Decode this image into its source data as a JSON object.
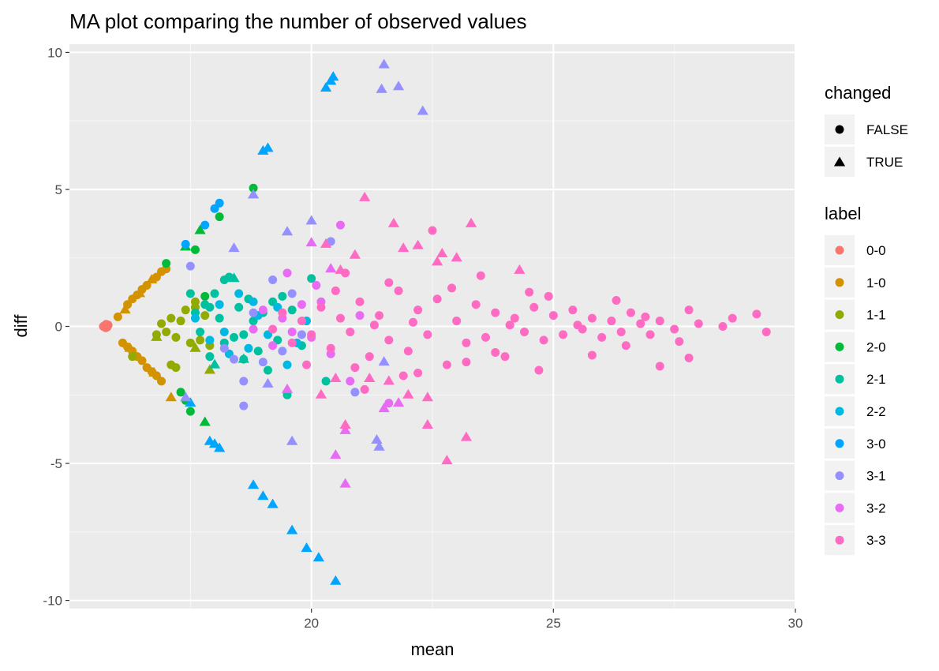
{
  "chart_data": {
    "type": "scatter",
    "title": "MA plot comparing the number of observed values",
    "xlabel": "mean",
    "ylabel": "diff",
    "xlim": [
      15.0,
      30.0
    ],
    "ylim": [
      -10.3,
      10.3
    ],
    "x_ticks": [
      20,
      25,
      30
    ],
    "x_tick_labels": [
      "20",
      "25",
      "30"
    ],
    "y_ticks": [
      -10,
      -5,
      0,
      5,
      10
    ],
    "y_tick_labels": [
      "-10",
      "-5",
      "0",
      "5",
      "10"
    ],
    "grid": true,
    "background": "#ebebeb",
    "legend_position": "right",
    "shape_legend": {
      "title": "changed",
      "entries": [
        {
          "label": "FALSE",
          "shape": "circle"
        },
        {
          "label": "TRUE",
          "shape": "triangle"
        }
      ]
    },
    "color_legend": {
      "title": "label",
      "entries": [
        {
          "label": "0-0",
          "color": "#F8766D"
        },
        {
          "label": "1-0",
          "color": "#D39200"
        },
        {
          "label": "1-1",
          "color": "#93AA00"
        },
        {
          "label": "2-0",
          "color": "#00BA38"
        },
        {
          "label": "2-1",
          "color": "#00C19F"
        },
        {
          "label": "2-2",
          "color": "#00B9E3"
        },
        {
          "label": "3-0",
          "color": "#00A5FF"
        },
        {
          "label": "3-1",
          "color": "#9590FF"
        },
        {
          "label": "3-2",
          "color": "#E76BF3"
        },
        {
          "label": "3-3",
          "color": "#FF6AC2"
        }
      ]
    },
    "series": [
      {
        "label": "0-0",
        "changed": false,
        "points": [
          [
            15.7,
            0.0
          ],
          [
            15.75,
            -0.05
          ],
          [
            15.8,
            0.05
          ],
          [
            15.72,
            0.02
          ],
          [
            15.78,
            -0.02
          ],
          [
            15.76,
            0.08
          ]
        ]
      },
      {
        "label": "1-0",
        "changed": false,
        "points": [
          [
            16.0,
            0.35
          ],
          [
            16.2,
            0.8
          ],
          [
            16.3,
            1.0
          ],
          [
            16.4,
            1.15
          ],
          [
            16.5,
            1.35
          ],
          [
            16.6,
            1.5
          ],
          [
            16.8,
            1.8
          ],
          [
            16.9,
            2.0
          ],
          [
            17.0,
            2.1
          ],
          [
            16.1,
            -0.6
          ],
          [
            16.2,
            -0.75
          ],
          [
            16.3,
            -0.9
          ],
          [
            16.4,
            -1.1
          ],
          [
            16.5,
            -1.25
          ],
          [
            16.6,
            -1.5
          ],
          [
            16.7,
            -1.65
          ],
          [
            16.8,
            -1.8
          ],
          [
            16.9,
            -2.0
          ]
        ]
      },
      {
        "label": "1-0",
        "changed": true,
        "points": [
          [
            16.15,
            0.6
          ],
          [
            16.45,
            1.2
          ],
          [
            16.7,
            1.7
          ],
          [
            16.25,
            -0.8
          ],
          [
            16.75,
            -1.7
          ],
          [
            17.1,
            -2.6
          ]
        ]
      },
      {
        "label": "1-1",
        "changed": false,
        "points": [
          [
            16.3,
            -1.1
          ],
          [
            16.8,
            -0.3
          ],
          [
            16.9,
            0.1
          ],
          [
            17.0,
            -0.2
          ],
          [
            17.1,
            0.3
          ],
          [
            17.2,
            -0.4
          ],
          [
            17.3,
            0.2
          ],
          [
            17.4,
            0.6
          ],
          [
            17.5,
            -0.6
          ],
          [
            17.6,
            0.9
          ],
          [
            17.7,
            -0.5
          ],
          [
            17.8,
            0.4
          ],
          [
            17.1,
            -1.4
          ],
          [
            17.2,
            -1.5
          ],
          [
            17.6,
            0.7
          ],
          [
            17.9,
            -0.7
          ]
        ]
      },
      {
        "label": "1-1",
        "changed": true,
        "points": [
          [
            16.8,
            -0.4
          ],
          [
            17.6,
            -0.8
          ],
          [
            17.9,
            -1.6
          ]
        ]
      },
      {
        "label": "2-0",
        "changed": false,
        "points": [
          [
            17.0,
            2.3
          ],
          [
            17.3,
            -2.4
          ],
          [
            17.5,
            -3.1
          ],
          [
            17.8,
            1.1
          ],
          [
            18.1,
            4.0
          ],
          [
            18.8,
            5.05
          ],
          [
            17.6,
            2.8
          ],
          [
            17.4,
            -2.7
          ]
        ]
      },
      {
        "label": "2-0",
        "changed": true,
        "points": [
          [
            17.7,
            3.5
          ],
          [
            17.8,
            -3.5
          ],
          [
            17.4,
            2.9
          ]
        ]
      },
      {
        "label": "2-1",
        "changed": false,
        "points": [
          [
            17.5,
            1.2
          ],
          [
            17.6,
            0.5
          ],
          [
            17.7,
            -0.2
          ],
          [
            17.8,
            0.8
          ],
          [
            17.9,
            -1.1
          ],
          [
            18.0,
            1.2
          ],
          [
            18.1,
            0.3
          ],
          [
            18.2,
            -0.6
          ],
          [
            18.3,
            1.8
          ],
          [
            18.4,
            -0.4
          ],
          [
            18.5,
            0.7
          ],
          [
            18.6,
            -1.2
          ],
          [
            18.7,
            1.0
          ],
          [
            18.8,
            0.2
          ],
          [
            18.9,
            -0.9
          ],
          [
            19.0,
            0.5
          ],
          [
            19.1,
            -1.6
          ],
          [
            19.2,
            0.9
          ],
          [
            19.3,
            -0.5
          ],
          [
            19.4,
            1.1
          ],
          [
            19.5,
            -2.5
          ],
          [
            19.6,
            0.6
          ],
          [
            19.8,
            -0.7
          ],
          [
            20.0,
            1.75
          ],
          [
            20.3,
            -2.0
          ],
          [
            18.2,
            1.7
          ],
          [
            17.9,
            0.7
          ],
          [
            18.6,
            -0.3
          ]
        ]
      },
      {
        "label": "2-1",
        "changed": true,
        "points": [
          [
            18.0,
            -1.4
          ],
          [
            18.6,
            -1.2
          ],
          [
            18.4,
            1.75
          ]
        ]
      },
      {
        "label": "2-2",
        "changed": false,
        "points": [
          [
            17.6,
            0.3
          ],
          [
            17.9,
            -0.5
          ],
          [
            18.1,
            0.8
          ],
          [
            18.3,
            -1.0
          ],
          [
            18.5,
            1.2
          ],
          [
            18.7,
            -0.8
          ],
          [
            18.9,
            0.4
          ],
          [
            19.1,
            -0.3
          ],
          [
            19.3,
            0.7
          ],
          [
            19.5,
            -1.4
          ],
          [
            19.7,
            -0.6
          ],
          [
            19.9,
            0.2
          ],
          [
            18.2,
            -0.2
          ],
          [
            18.8,
            0.9
          ]
        ]
      },
      {
        "label": "3-0",
        "changed": false,
        "points": [
          [
            17.4,
            3.0
          ],
          [
            17.8,
            3.7
          ],
          [
            18.0,
            4.3
          ],
          [
            18.1,
            4.5
          ]
        ]
      },
      {
        "label": "3-0",
        "changed": true,
        "points": [
          [
            17.5,
            -2.8
          ],
          [
            18.0,
            -4.3
          ],
          [
            18.1,
            -4.45
          ],
          [
            18.8,
            -5.8
          ],
          [
            19.0,
            6.4
          ],
          [
            19.1,
            6.5
          ],
          [
            19.0,
            -6.2
          ],
          [
            19.2,
            -6.5
          ],
          [
            19.6,
            -7.45
          ],
          [
            19.9,
            -8.1
          ],
          [
            20.15,
            -8.45
          ],
          [
            20.3,
            8.7
          ],
          [
            20.4,
            8.95
          ],
          [
            20.45,
            9.1
          ],
          [
            20.5,
            -9.3
          ],
          [
            17.9,
            -4.2
          ]
        ]
      },
      {
        "label": "3-1",
        "changed": false,
        "points": [
          [
            17.5,
            2.2
          ],
          [
            18.2,
            -0.8
          ],
          [
            18.4,
            -1.2
          ],
          [
            18.6,
            -2.0
          ],
          [
            18.8,
            0.5
          ],
          [
            19.0,
            -1.3
          ],
          [
            19.2,
            1.7
          ],
          [
            19.4,
            -0.9
          ],
          [
            19.6,
            1.2
          ],
          [
            19.8,
            -0.3
          ],
          [
            18.6,
            -2.9
          ],
          [
            20.4,
            3.1
          ],
          [
            20.9,
            -2.4
          ]
        ]
      },
      {
        "label": "3-1",
        "changed": true,
        "points": [
          [
            17.4,
            -2.6
          ],
          [
            18.4,
            2.85
          ],
          [
            18.8,
            4.8
          ],
          [
            19.1,
            -2.1
          ],
          [
            19.5,
            3.45
          ],
          [
            19.6,
            -4.2
          ],
          [
            20.0,
            3.85
          ],
          [
            21.35,
            -4.15
          ],
          [
            21.4,
            -4.4
          ],
          [
            21.45,
            8.65
          ],
          [
            21.5,
            9.55
          ],
          [
            21.8,
            8.75
          ],
          [
            22.3,
            7.85
          ],
          [
            21.5,
            -1.3
          ]
        ]
      },
      {
        "label": "3-2",
        "changed": false,
        "points": [
          [
            18.8,
            -0.1
          ],
          [
            19.0,
            0.6
          ],
          [
            19.2,
            -0.7
          ],
          [
            19.4,
            0.3
          ],
          [
            19.6,
            -0.2
          ],
          [
            19.8,
            0.8
          ],
          [
            20.0,
            -0.4
          ],
          [
            20.2,
            0.9
          ],
          [
            20.4,
            -1.0
          ],
          [
            20.6,
            3.7
          ],
          [
            20.8,
            -2.0
          ],
          [
            21.0,
            0.4
          ],
          [
            21.6,
            -2.8
          ],
          [
            19.5,
            1.95
          ],
          [
            20.1,
            1.5
          ]
        ]
      },
      {
        "label": "3-2",
        "changed": true,
        "points": [
          [
            19.5,
            -2.3
          ],
          [
            20.0,
            3.05
          ],
          [
            20.4,
            2.1
          ],
          [
            20.5,
            -4.7
          ],
          [
            20.7,
            -3.8
          ],
          [
            20.7,
            -5.75
          ],
          [
            21.5,
            -3.0
          ],
          [
            21.8,
            -2.8
          ]
        ]
      },
      {
        "label": "3-3",
        "changed": false,
        "points": [
          [
            19.2,
            -0.1
          ],
          [
            19.4,
            0.5
          ],
          [
            19.6,
            -0.6
          ],
          [
            19.8,
            0.2
          ],
          [
            20.0,
            -0.3
          ],
          [
            20.2,
            0.7
          ],
          [
            20.4,
            -0.8
          ],
          [
            20.6,
            0.3
          ],
          [
            20.8,
            -0.2
          ],
          [
            21.0,
            0.9
          ],
          [
            21.2,
            -1.1
          ],
          [
            21.4,
            0.4
          ],
          [
            21.6,
            -0.5
          ],
          [
            21.8,
            1.3
          ],
          [
            22.0,
            -0.9
          ],
          [
            22.2,
            0.6
          ],
          [
            22.4,
            -0.3
          ],
          [
            22.6,
            1.0
          ],
          [
            22.8,
            -1.4
          ],
          [
            23.0,
            0.2
          ],
          [
            23.2,
            -0.6
          ],
          [
            23.4,
            0.8
          ],
          [
            23.6,
            -0.4
          ],
          [
            23.8,
            0.5
          ],
          [
            24.0,
            -1.1
          ],
          [
            24.2,
            0.3
          ],
          [
            24.4,
            -0.2
          ],
          [
            24.6,
            0.7
          ],
          [
            24.8,
            -0.5
          ],
          [
            25.0,
            0.4
          ],
          [
            25.2,
            -0.3
          ],
          [
            25.4,
            0.6
          ],
          [
            25.6,
            -0.1
          ],
          [
            25.8,
            0.3
          ],
          [
            26.0,
            -0.4
          ],
          [
            26.2,
            0.2
          ],
          [
            26.4,
            -0.2
          ],
          [
            26.6,
            0.5
          ],
          [
            26.8,
            0.1
          ],
          [
            27.0,
            -0.3
          ],
          [
            27.2,
            0.2
          ],
          [
            27.5,
            -0.1
          ],
          [
            27.8,
            0.6
          ],
          [
            28.0,
            0.1
          ],
          [
            28.5,
            0.0
          ],
          [
            28.7,
            0.3
          ],
          [
            29.2,
            0.45
          ],
          [
            29.4,
            -0.2
          ],
          [
            27.2,
            -1.45
          ],
          [
            27.8,
            -1.15
          ],
          [
            26.5,
            -0.7
          ],
          [
            24.7,
            -1.6
          ],
          [
            23.2,
            -1.3
          ],
          [
            22.5,
            3.5
          ],
          [
            21.6,
            1.6
          ],
          [
            21.1,
            -2.3
          ],
          [
            22.2,
            -1.7
          ],
          [
            23.5,
            1.85
          ],
          [
            24.9,
            1.1
          ],
          [
            26.3,
            0.95
          ],
          [
            20.5,
            1.3
          ],
          [
            20.9,
            -1.5
          ],
          [
            22.9,
            1.4
          ],
          [
            23.8,
            -0.95
          ],
          [
            25.8,
            -1.05
          ],
          [
            27.6,
            -0.55
          ],
          [
            21.3,
            0.05
          ],
          [
            22.1,
            0.15
          ],
          [
            24.1,
            0.05
          ],
          [
            25.5,
            0.05
          ],
          [
            19.9,
            -1.4
          ],
          [
            20.7,
            1.95
          ],
          [
            21.9,
            -1.8
          ],
          [
            24.5,
            1.25
          ],
          [
            26.9,
            0.35
          ]
        ]
      },
      {
        "label": "3-3",
        "changed": true,
        "points": [
          [
            20.2,
            -2.5
          ],
          [
            20.3,
            3.0
          ],
          [
            20.6,
            2.05
          ],
          [
            20.7,
            -3.6
          ],
          [
            20.9,
            2.6
          ],
          [
            21.1,
            4.7
          ],
          [
            21.2,
            -1.9
          ],
          [
            21.6,
            -2.0
          ],
          [
            21.7,
            3.75
          ],
          [
            21.9,
            2.85
          ],
          [
            22.0,
            -2.5
          ],
          [
            22.2,
            2.95
          ],
          [
            22.4,
            -2.6
          ],
          [
            22.4,
            -3.6
          ],
          [
            22.6,
            2.35
          ],
          [
            22.8,
            -4.9
          ],
          [
            23.0,
            2.5
          ],
          [
            23.3,
            3.75
          ],
          [
            23.2,
            -4.05
          ],
          [
            24.3,
            2.05
          ],
          [
            20.5,
            -1.9
          ],
          [
            22.7,
            2.65
          ]
        ]
      }
    ]
  }
}
